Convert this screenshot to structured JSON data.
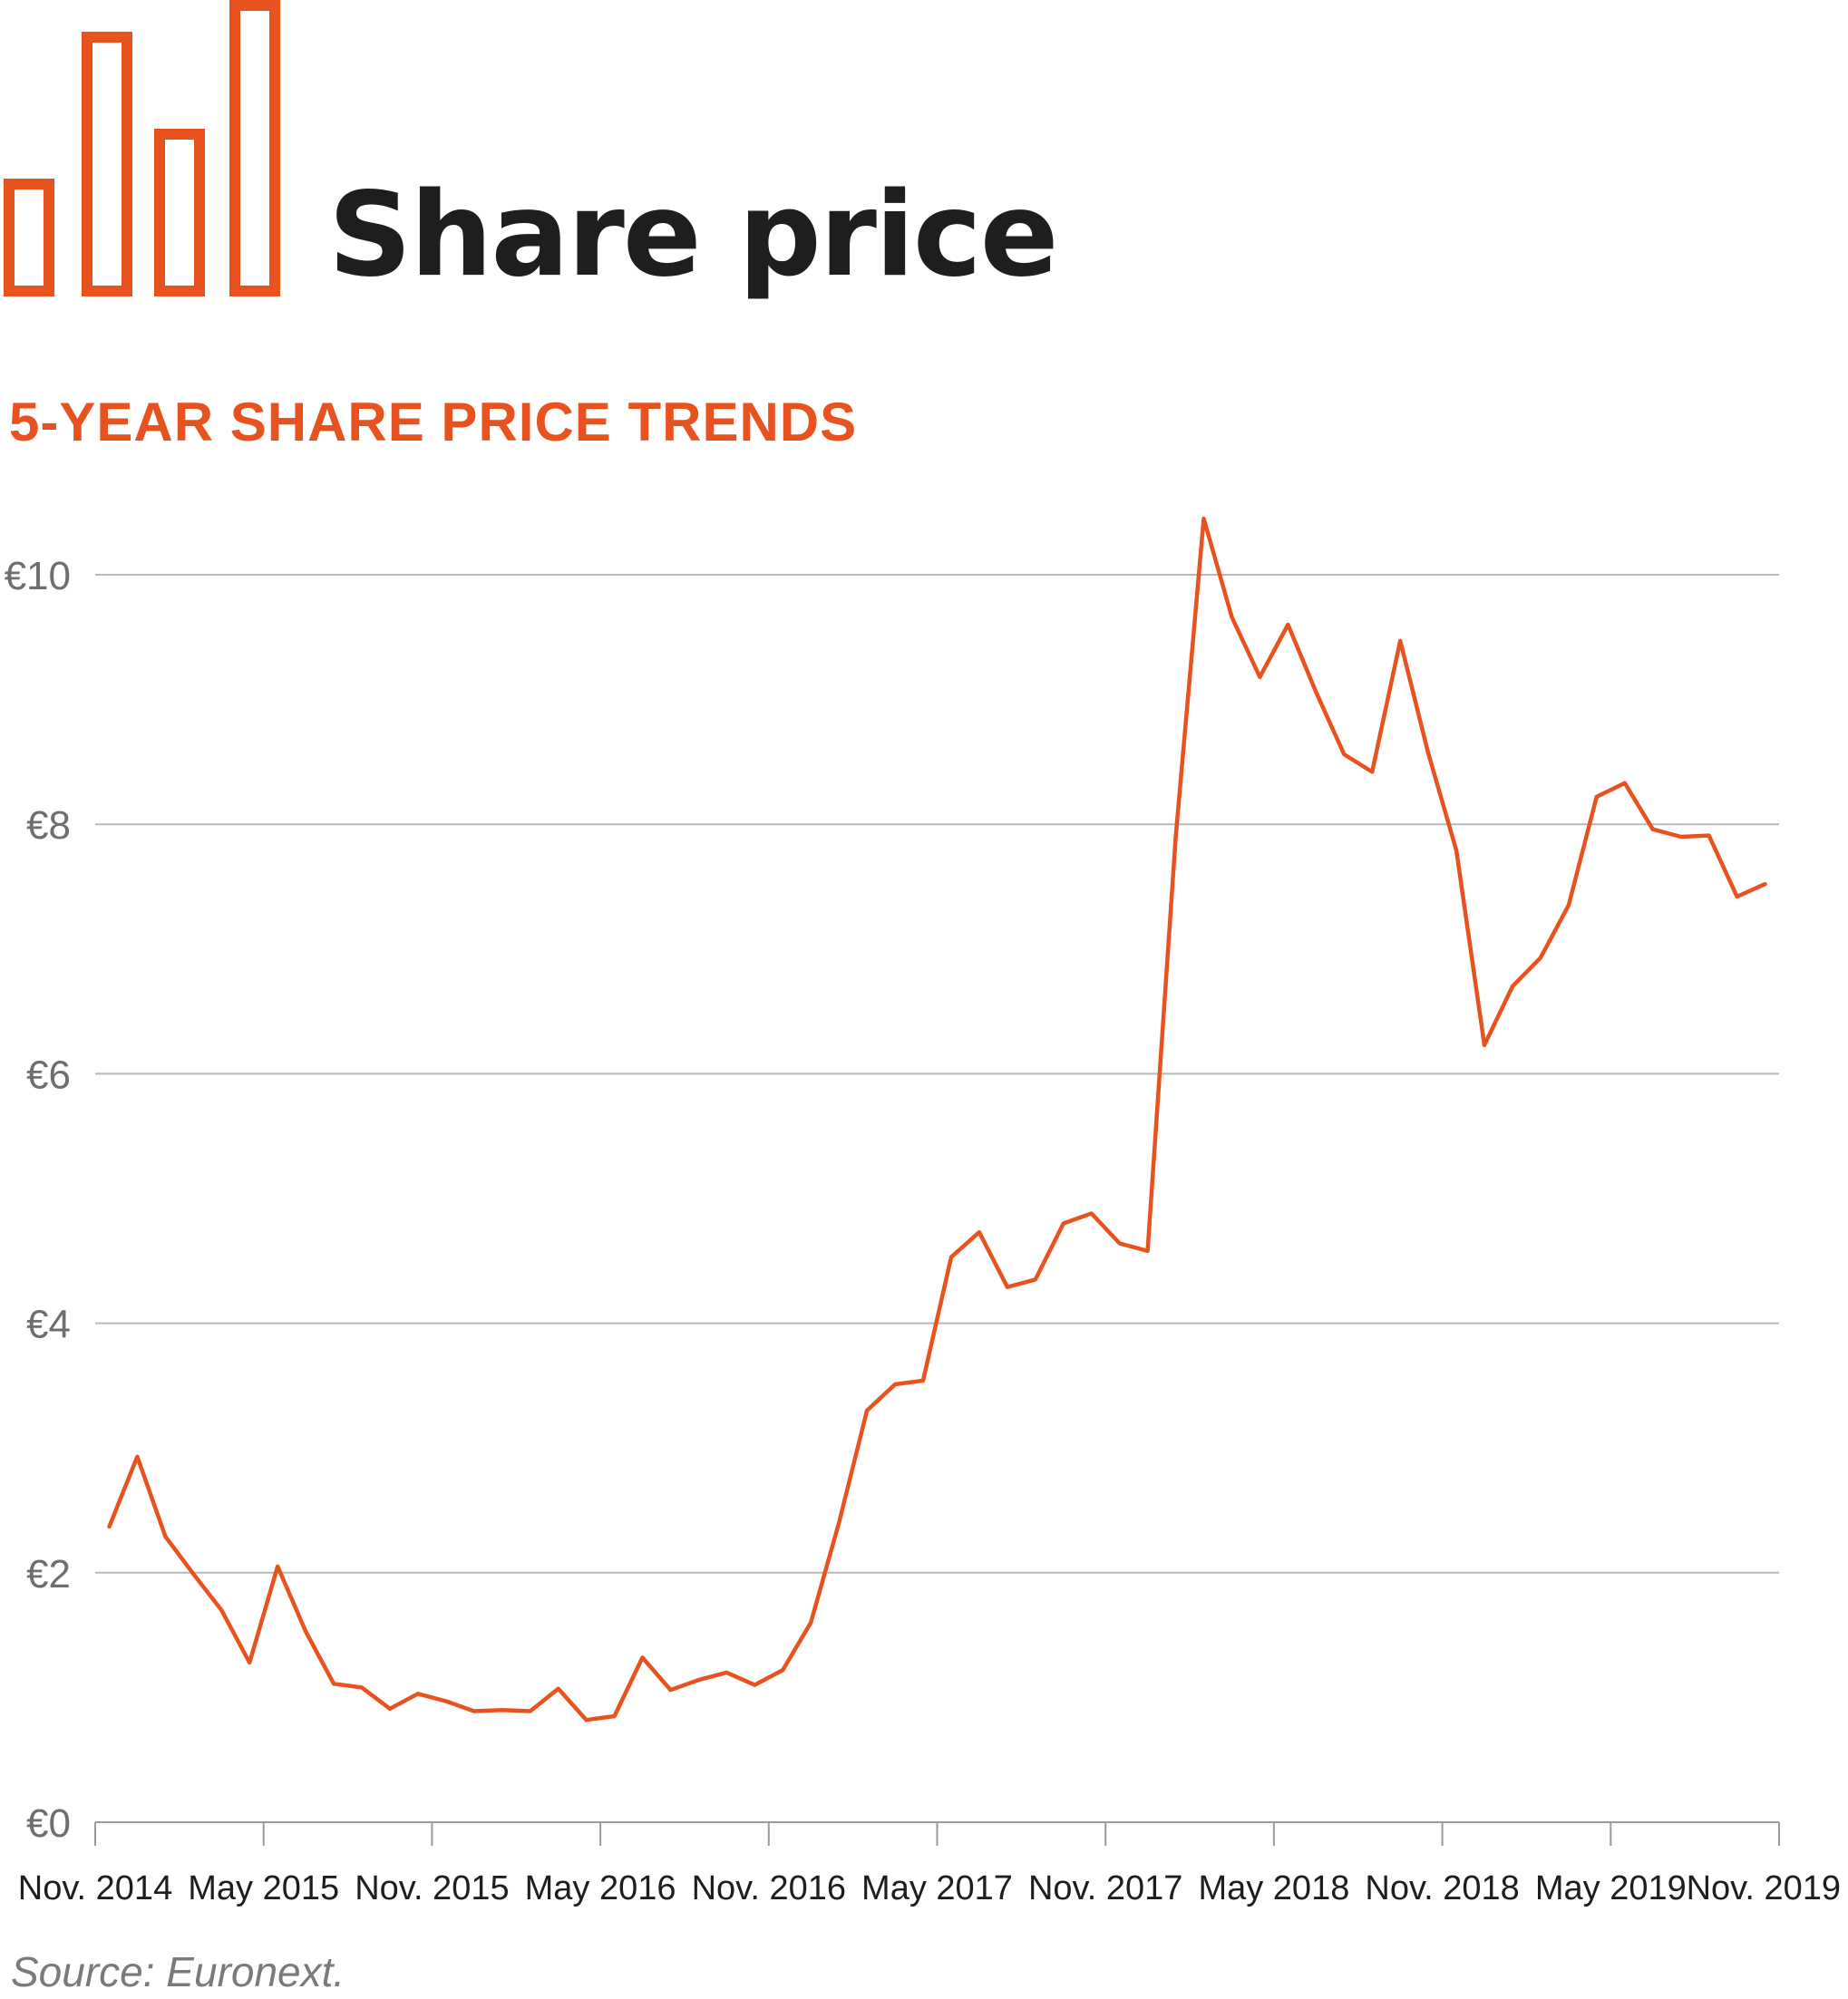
{
  "header": {
    "title": "Share price",
    "subtitle": "5-YEAR SHARE PRICE TRENDS",
    "source": "Source: Euronext.",
    "icon": "bar-chart-icon"
  },
  "colors": {
    "accent": "#e8521e",
    "grid": "#b9b9b9",
    "text": "#1e1e1e",
    "axis_text": "#6e6e6e"
  },
  "chart_data": {
    "type": "line",
    "title": "5-YEAR SHARE PRICE TRENDS",
    "xlabel": "",
    "ylabel": "",
    "ylim": [
      0,
      10
    ],
    "grid": "horizontal",
    "y_ticks": [
      {
        "value": 0,
        "label": "€0"
      },
      {
        "value": 2,
        "label": "€2"
      },
      {
        "value": 4,
        "label": "€4"
      },
      {
        "value": 6,
        "label": "€6"
      },
      {
        "value": 8,
        "label": "€8"
      },
      {
        "value": 10,
        "label": "€10"
      }
    ],
    "x_ticks": [
      {
        "value": 0,
        "label": "Nov. 2014"
      },
      {
        "value": 6,
        "label": "May 2015"
      },
      {
        "value": 12,
        "label": "Nov. 2015"
      },
      {
        "value": 18,
        "label": "May 2016"
      },
      {
        "value": 24,
        "label": "Nov. 2016"
      },
      {
        "value": 30,
        "label": "May 2017"
      },
      {
        "value": 36,
        "label": "Nov. 2017"
      },
      {
        "value": 42,
        "label": "May 2018"
      },
      {
        "value": 48,
        "label": "Nov. 2018"
      },
      {
        "value": 54,
        "label": "May 2019"
      },
      {
        "value": 60,
        "label": "Nov. 2019"
      }
    ],
    "xlim": [
      0,
      60
    ],
    "series": [
      {
        "color": "#e8521e",
        "points": [
          [
            0.5,
            2.37
          ],
          [
            1.5,
            2.93
          ],
          [
            2.5,
            2.29
          ],
          [
            3.5,
            1.99
          ],
          [
            4.5,
            1.7
          ],
          [
            5.5,
            1.28
          ],
          [
            6.5,
            2.05
          ],
          [
            7.5,
            1.53
          ],
          [
            8.5,
            1.11
          ],
          [
            9.5,
            1.08
          ],
          [
            10.5,
            0.91
          ],
          [
            11.5,
            1.03
          ],
          [
            12.5,
            0.97
          ],
          [
            13.5,
            0.89
          ],
          [
            14.5,
            0.9
          ],
          [
            15.5,
            0.89
          ],
          [
            16.5,
            1.07
          ],
          [
            17.5,
            0.82
          ],
          [
            18.5,
            0.85
          ],
          [
            19.5,
            1.32
          ],
          [
            20.5,
            1.06
          ],
          [
            21.5,
            1.14
          ],
          [
            22.5,
            1.2
          ],
          [
            23.5,
            1.1
          ],
          [
            24.5,
            1.22
          ],
          [
            25.5,
            1.6
          ],
          [
            26.5,
            2.4
          ],
          [
            27.5,
            3.3
          ],
          [
            28.5,
            3.51
          ],
          [
            29.5,
            3.54
          ],
          [
            30.5,
            4.53
          ],
          [
            31.5,
            4.73
          ],
          [
            32.5,
            4.29
          ],
          [
            33.5,
            4.35
          ],
          [
            34.5,
            4.8
          ],
          [
            35.5,
            4.88
          ],
          [
            36.5,
            4.64
          ],
          [
            37.5,
            4.58
          ],
          [
            38.5,
            7.9
          ],
          [
            39.5,
            10.45
          ],
          [
            40.5,
            9.66
          ],
          [
            41.5,
            9.18
          ],
          [
            42.5,
            9.6
          ],
          [
            43.5,
            9.06
          ],
          [
            44.5,
            8.56
          ],
          [
            45.5,
            8.42
          ],
          [
            46.5,
            9.47
          ],
          [
            47.5,
            8.57
          ],
          [
            48.5,
            7.79
          ],
          [
            49.5,
            6.23
          ],
          [
            50.5,
            6.7
          ],
          [
            51.5,
            6.93
          ],
          [
            52.5,
            7.35
          ],
          [
            53.5,
            8.22
          ],
          [
            54.5,
            8.33
          ],
          [
            55.5,
            7.96
          ],
          [
            56.5,
            7.9
          ],
          [
            57.5,
            7.91
          ],
          [
            58.5,
            7.42
          ],
          [
            59.5,
            7.52
          ]
        ]
      }
    ]
  }
}
